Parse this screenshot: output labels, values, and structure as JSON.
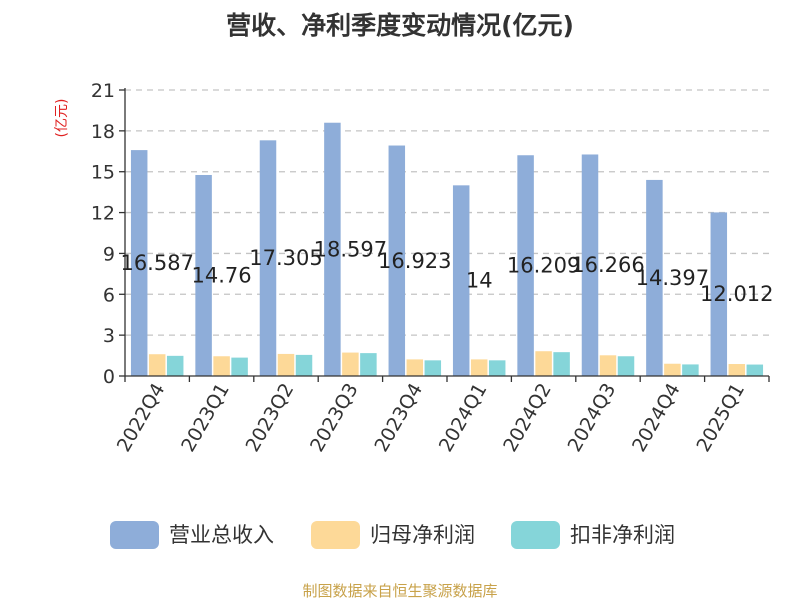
{
  "chart_data": {
    "type": "bar",
    "title": "营收、净利季度变动情况(亿元)",
    "ylabel": "(亿元)",
    "xlabel": "",
    "ylim": [
      0,
      21
    ],
    "yticks": [
      0,
      3,
      6,
      9,
      12,
      15,
      18,
      21
    ],
    "grid": true,
    "legend_position": "bottom",
    "categories": [
      "2022Q4",
      "2023Q1",
      "2023Q2",
      "2023Q3",
      "2023Q4",
      "2024Q1",
      "2024Q2",
      "2024Q3",
      "2024Q4",
      "2025Q1"
    ],
    "series": [
      {
        "name": "营业总收入",
        "color": "#8eadd9",
        "values": [
          16.587,
          14.76,
          17.305,
          18.597,
          16.923,
          14,
          16.209,
          16.266,
          14.397,
          12.012
        ],
        "labels": [
          "16.587",
          "14.76",
          "17.305",
          "18.597",
          "16.923",
          "14",
          "16.209",
          "16.266",
          "14.397",
          "12.012"
        ]
      },
      {
        "name": "归母净利润",
        "color": "#fdd998",
        "values": [
          1.6,
          1.45,
          1.62,
          1.72,
          1.22,
          1.22,
          1.82,
          1.52,
          0.9,
          0.88
        ]
      },
      {
        "name": "扣非净利润",
        "color": "#85d5d9",
        "values": [
          1.48,
          1.35,
          1.55,
          1.68,
          1.15,
          1.15,
          1.75,
          1.45,
          0.85,
          0.84
        ]
      }
    ]
  },
  "source": "制图数据来自恒生聚源数据库"
}
